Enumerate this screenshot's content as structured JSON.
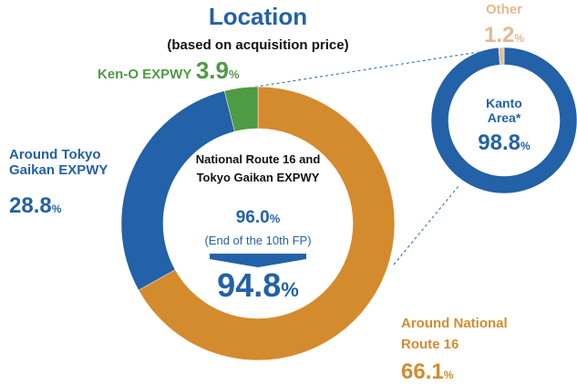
{
  "chart_data": [
    {
      "type": "donut",
      "title": "Location",
      "subtitle": "(based on acquisition price)",
      "categories": [
        "Around National Route 16",
        "Around Tokyo Gaikan EXPWY",
        "Ken-O EXPWY"
      ],
      "values": [
        66.1,
        28.8,
        3.9
      ],
      "colors": [
        "#d48b2e",
        "#2361a8",
        "#4f9a45"
      ],
      "unit": "%",
      "center_label": "National Route 16 and Tokyo Gaikan EXPWY",
      "center_previous": {
        "value": 96.0,
        "label": "96.0"
      },
      "center_previous_note": "(End of the 10th FP)",
      "center_value": 94.8
    },
    {
      "type": "donut",
      "categories": [
        "Kanto Area*",
        "Other"
      ],
      "values": [
        98.8,
        1.2
      ],
      "colors": [
        "#2361a8",
        "#e3bf97"
      ],
      "unit": "%"
    }
  ]
}
